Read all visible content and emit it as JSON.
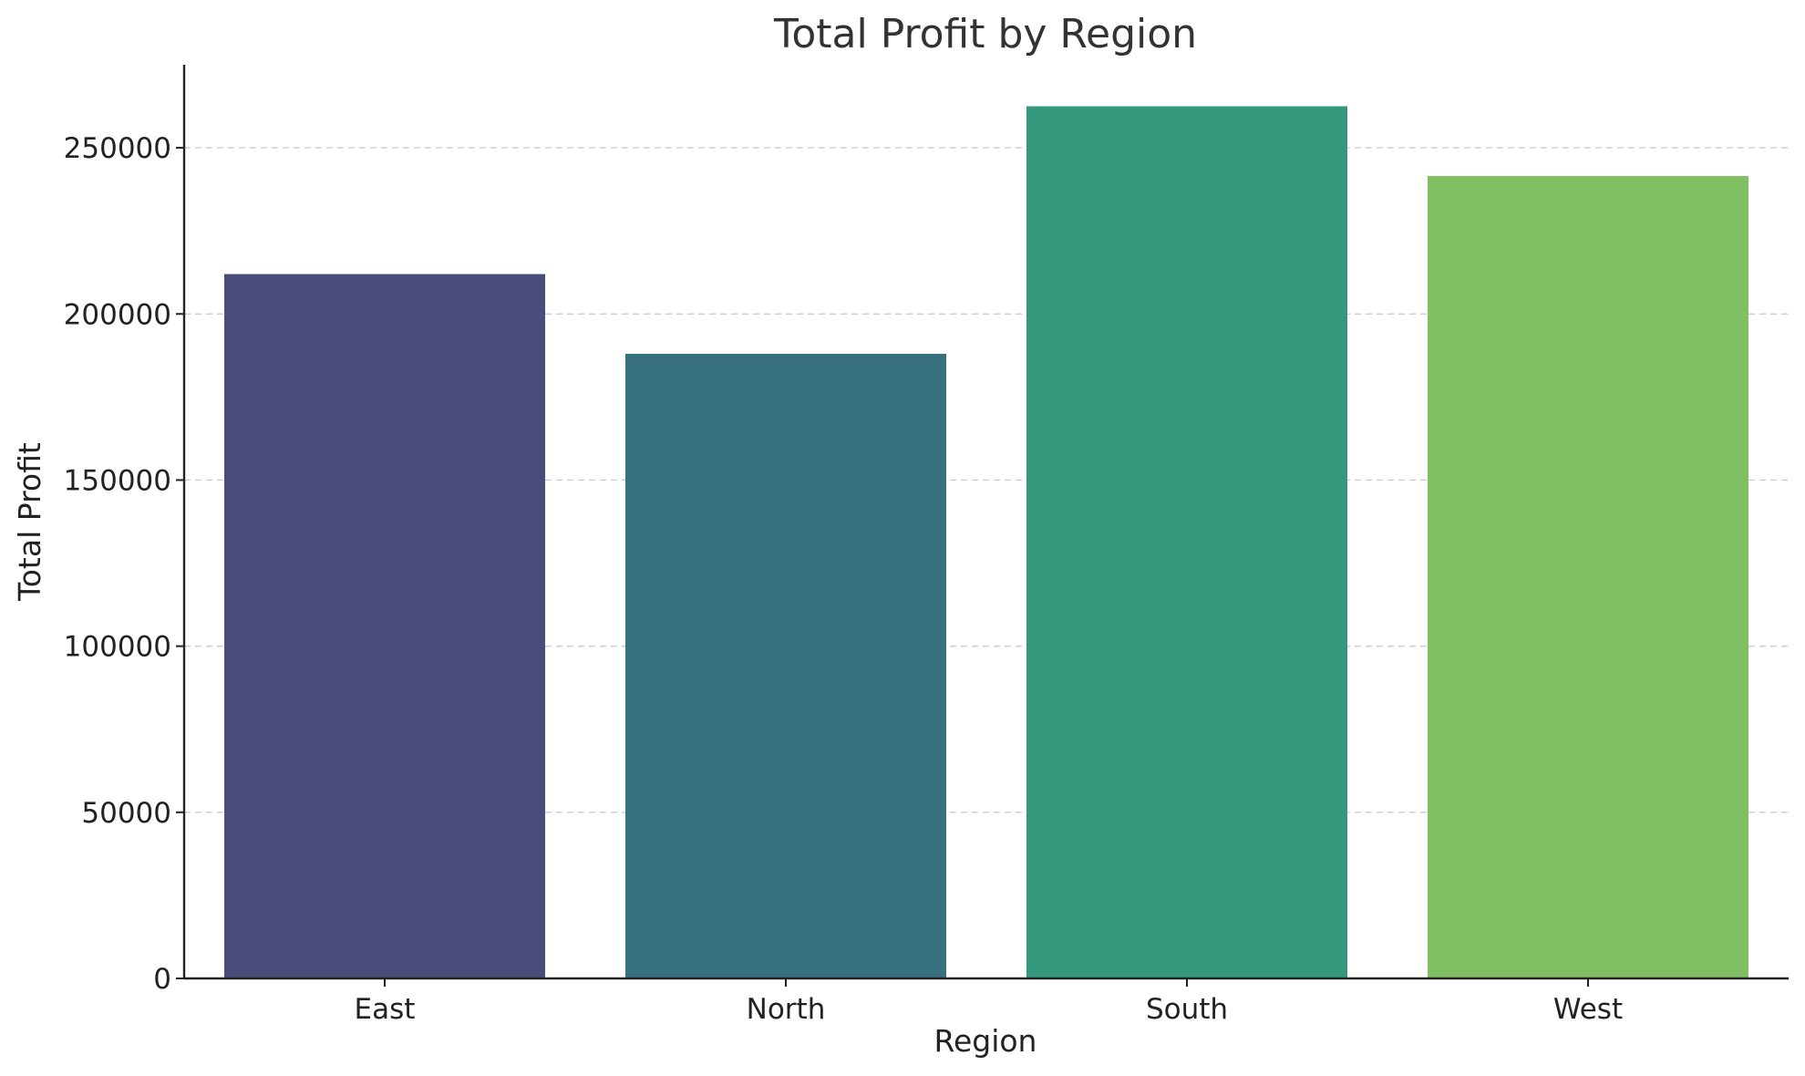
{
  "chart_data": {
    "type": "bar",
    "title": "Total Profit by Region",
    "xlabel": "Region",
    "ylabel": "Total Profit",
    "categories": [
      "East",
      "North",
      "South",
      "West"
    ],
    "values": [
      212000,
      188000,
      262500,
      241500
    ],
    "colors": [
      "#4a4c7b",
      "#37707e",
      "#35977b",
      "#80c062"
    ],
    "ylim": [
      0,
      275000
    ],
    "yticks": [
      0,
      50000,
      100000,
      150000,
      200000,
      250000
    ],
    "ytick_labels": [
      "0",
      "50000",
      "100000",
      "150000",
      "200000",
      "250000"
    ],
    "grid": "horizontal-dashed",
    "legend": "none"
  }
}
